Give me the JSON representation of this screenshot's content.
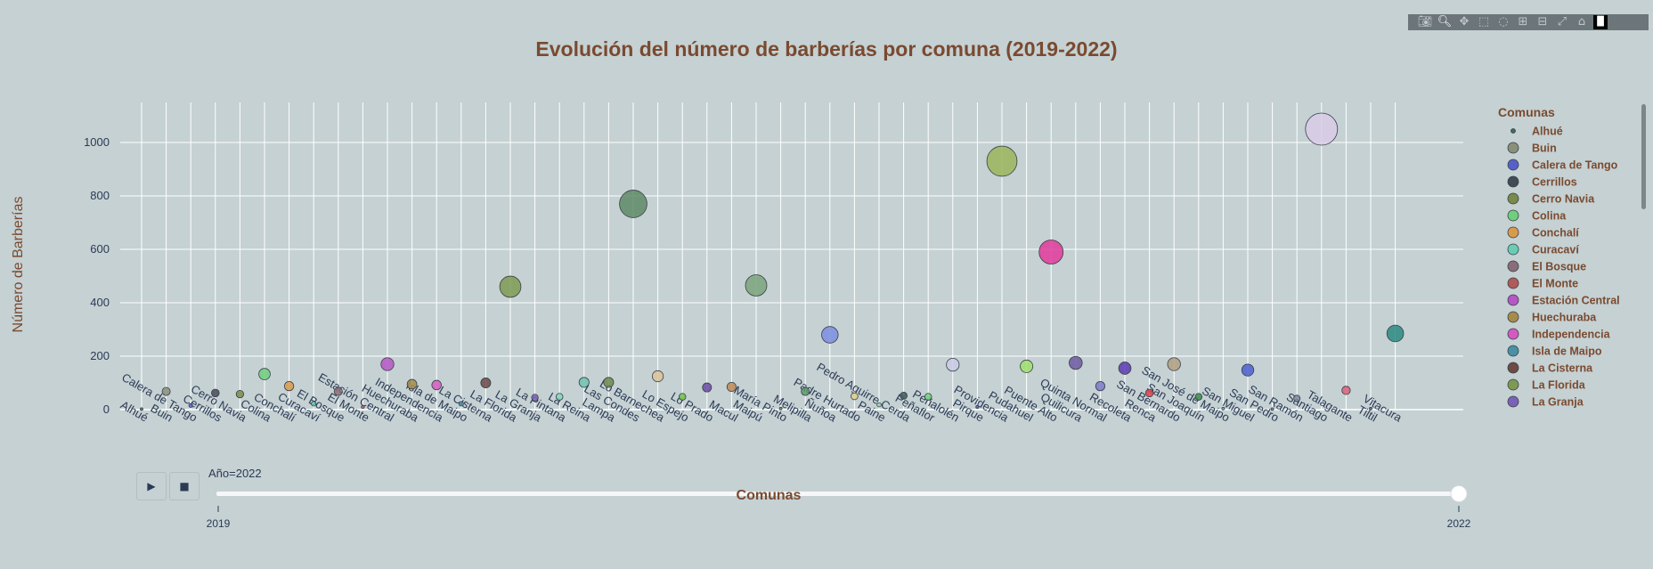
{
  "chart_data": {
    "type": "scatter",
    "title": "Evolución del número de barberías por comuna (2019-2022)",
    "xlabel": "Comunas",
    "ylabel": "Número de Barberías",
    "ylim": [
      0,
      1150
    ],
    "yticks": [
      0,
      200,
      400,
      600,
      800,
      1000
    ],
    "grid": true,
    "legend_title": "Comunas",
    "legend_position": "right",
    "frame_label": "Año=2022",
    "slider_ticks": [
      "2019",
      "2022"
    ],
    "categories": [
      "Alhué",
      "Buin",
      "Calera de Tango",
      "Cerrillos",
      "Cerro Navia",
      "Colina",
      "Conchalí",
      "Curacaví",
      "El Bosque",
      "El Monte",
      "Estación Central",
      "Huechuraba",
      "Independencia",
      "Isla de Maipo",
      "La Cisterna",
      "La Florida",
      "La Granja",
      "La Pintana",
      "La Reina",
      "Lampa",
      "Las Condes",
      "Lo Barnechea",
      "Lo Espejo",
      "Lo Prado",
      "Macul",
      "Maipú",
      "María Pinto",
      "Melipilla",
      "Ñuñoa",
      "Padre Hurtado",
      "Paine",
      "Pedro Aguirre Cerda",
      "Peñaflor",
      "Peñalolén",
      "Pirque",
      "Providencia",
      "Pudahuel",
      "Puente Alto",
      "Quilicura",
      "Quinta Normal",
      "Recoleta",
      "Renca",
      "San Bernardo",
      "San Joaquín",
      "San José de Maipo",
      "San Miguel",
      "San Pedro",
      "San Ramón",
      "Santiago",
      "Talagante",
      "Tiltil",
      "Vitacura"
    ],
    "series": [
      {
        "name": "Alhué",
        "x": "Alhué",
        "y": 2,
        "color": "#3f6b66"
      },
      {
        "name": "Buin",
        "x": "Buin",
        "y": 68,
        "color": "#8a8f7a"
      },
      {
        "name": "Calera de Tango",
        "x": "Calera de Tango",
        "y": 15,
        "color": "#5660c9"
      },
      {
        "name": "Cerrillos",
        "x": "Cerrillos",
        "y": 62,
        "color": "#434a58"
      },
      {
        "name": "Cerro Navia",
        "x": "Cerro Navia",
        "y": 58,
        "color": "#7a8a4a"
      },
      {
        "name": "Colina",
        "x": "Colina",
        "y": 133,
        "color": "#6fcf7d"
      },
      {
        "name": "Conchalí",
        "x": "Conchalí",
        "y": 88,
        "color": "#d99a4a"
      },
      {
        "name": "Curacaví",
        "x": "Curacaví",
        "y": 22,
        "color": "#69cdb5"
      },
      {
        "name": "El Bosque",
        "x": "El Bosque",
        "y": 68,
        "color": "#8a6d79"
      },
      {
        "name": "El Monte",
        "x": "El Monte",
        "y": 10,
        "color": "#b05a5a"
      },
      {
        "name": "Estación Central",
        "x": "Estación Central",
        "y": 170,
        "color": "#b557c4"
      },
      {
        "name": "Huechuraba",
        "x": "Huechuraba",
        "y": 95,
        "color": "#a58c4a"
      },
      {
        "name": "Independencia",
        "x": "Independencia",
        "y": 92,
        "color": "#d45ac1"
      },
      {
        "name": "Isla de Maipo",
        "x": "Isla de Maipo",
        "y": 22,
        "color": "#4a90a6"
      },
      {
        "name": "La Cisterna",
        "x": "La Cisterna",
        "y": 100,
        "color": "#6c4a46"
      },
      {
        "name": "La Florida",
        "x": "La Florida",
        "y": 460,
        "color": "#7e9a52"
      },
      {
        "name": "La Granja",
        "x": "La Granja",
        "y": 45,
        "color": "#7a62b8"
      },
      {
        "name": "La Pintana",
        "x": "La Pintana",
        "y": 48,
        "color": "#7fd6c0"
      },
      {
        "name": "La Reina",
        "x": "La Reina",
        "y": 102,
        "color": "#6fc2b0"
      },
      {
        "name": "Lampa",
        "x": "Lampa",
        "y": 102,
        "color": "#6b8a4f"
      },
      {
        "name": "Las Condes",
        "x": "Las Condes",
        "y": 770,
        "color": "#5e8a66"
      },
      {
        "name": "Lo Barnechea",
        "x": "Lo Barnechea",
        "y": 125,
        "color": "#d9c39a"
      },
      {
        "name": "Lo Espejo",
        "x": "Lo Espejo",
        "y": 48,
        "color": "#6cc24a"
      },
      {
        "name": "Lo Prado",
        "x": "Lo Prado",
        "y": 83,
        "color": "#6a4aa6"
      },
      {
        "name": "Macul",
        "x": "Macul",
        "y": 85,
        "color": "#c08a56"
      },
      {
        "name": "Maipú",
        "x": "Maipú",
        "y": 465,
        "color": "#7aa57a"
      },
      {
        "name": "María Pinto",
        "x": "María Pinto",
        "y": 4,
        "color": "#6a8a7a"
      },
      {
        "name": "Melipilla",
        "x": "Melipilla",
        "y": 68,
        "color": "#5a9a6a"
      },
      {
        "name": "Ñuñoa",
        "x": "Ñuñoa",
        "y": 280,
        "color": "#7a8ee0"
      },
      {
        "name": "Padre Hurtado",
        "x": "Padre Hurtado",
        "y": 50,
        "color": "#d8cf8a"
      },
      {
        "name": "Paine",
        "x": "Paine",
        "y": 18,
        "color": "#8ad6a0"
      },
      {
        "name": "Pedro Aguirre Cerda",
        "x": "Pedro Aguirre Cerda",
        "y": 52,
        "color": "#3a5a5c"
      },
      {
        "name": "Peñaflor",
        "x": "Peñaflor",
        "y": 48,
        "color": "#6fd17a"
      },
      {
        "name": "Peñalolén",
        "x": "Peñalolén",
        "y": 168,
        "color": "#c8cde6"
      },
      {
        "name": "Pirque",
        "x": "Pirque",
        "y": 10,
        "color": "#4a5aa0"
      },
      {
        "name": "Providencia",
        "x": "Providencia",
        "y": 930,
        "color": "#9ab55a"
      },
      {
        "name": "Pudahuel",
        "x": "Pudahuel",
        "y": 162,
        "color": "#9ee06a"
      },
      {
        "name": "Puente Alto",
        "x": "Puente Alto",
        "y": 590,
        "color": "#e0399a"
      },
      {
        "name": "Quilicura",
        "x": "Quilicura",
        "y": 175,
        "color": "#6b5aa0"
      },
      {
        "name": "Quinta Normal",
        "x": "Quinta Normal",
        "y": 88,
        "color": "#7a7ac8"
      },
      {
        "name": "Recoleta",
        "x": "Recoleta",
        "y": 155,
        "color": "#5a3ab0"
      },
      {
        "name": "Renca",
        "x": "Renca",
        "y": 62,
        "color": "#d8404a"
      },
      {
        "name": "San Bernardo",
        "x": "San Bernardo",
        "y": 170,
        "color": "#b0a080"
      },
      {
        "name": "San Joaquín",
        "x": "San Joaquín",
        "y": 48,
        "color": "#3a8a4a"
      },
      {
        "name": "San José de Maipo",
        "x": "San José de Maipo",
        "y": 4,
        "color": "#6ab0a0"
      },
      {
        "name": "San Miguel",
        "x": "San Miguel",
        "y": 148,
        "color": "#4a60d0"
      },
      {
        "name": "San Pedro",
        "x": "San Pedro",
        "y": 2,
        "color": "#6a7a9a"
      },
      {
        "name": "San Ramón",
        "x": "San Ramón",
        "y": 42,
        "color": "#7a8aa0"
      },
      {
        "name": "Santiago",
        "x": "Santiago",
        "y": 1050,
        "color": "#d8cde8"
      },
      {
        "name": "Talagante",
        "x": "Talagante",
        "y": 72,
        "color": "#d8607a"
      },
      {
        "name": "Tiltil",
        "x": "Tiltil",
        "y": 4,
        "color": "#4a6a8a"
      },
      {
        "name": "Vitacura",
        "x": "Vitacura",
        "y": 285,
        "color": "#2a8a80"
      }
    ],
    "legend_items": [
      {
        "label": "Alhué",
        "color": "#3f6b66",
        "small": true
      },
      {
        "label": "Buin",
        "color": "#8a8f7a"
      },
      {
        "label": "Calera de Tango",
        "color": "#5660c9"
      },
      {
        "label": "Cerrillos",
        "color": "#434a58"
      },
      {
        "label": "Cerro Navia",
        "color": "#7a8a4a"
      },
      {
        "label": "Colina",
        "color": "#6fcf7d"
      },
      {
        "label": "Conchalí",
        "color": "#d99a4a"
      },
      {
        "label": "Curacaví",
        "color": "#69cdb5"
      },
      {
        "label": "El Bosque",
        "color": "#8a6d79"
      },
      {
        "label": "El Monte",
        "color": "#b05a5a"
      },
      {
        "label": "Estación Central",
        "color": "#b557c4"
      },
      {
        "label": "Huechuraba",
        "color": "#a58c4a"
      },
      {
        "label": "Independencia",
        "color": "#d45ac1"
      },
      {
        "label": "Isla de Maipo",
        "color": "#4a90a6"
      },
      {
        "label": "La Cisterna",
        "color": "#6c4a46"
      },
      {
        "label": "La Florida",
        "color": "#7e9a52"
      },
      {
        "label": "La Granja",
        "color": "#7a62b8"
      }
    ]
  },
  "toolbar": {
    "icons": [
      "camera-icon",
      "zoom-icon",
      "pan-icon",
      "box-select-icon",
      "lasso-icon",
      "zoom-in-icon",
      "zoom-out-icon",
      "autoscale-icon",
      "reset-axes-icon",
      "plotly-logo-icon"
    ]
  }
}
